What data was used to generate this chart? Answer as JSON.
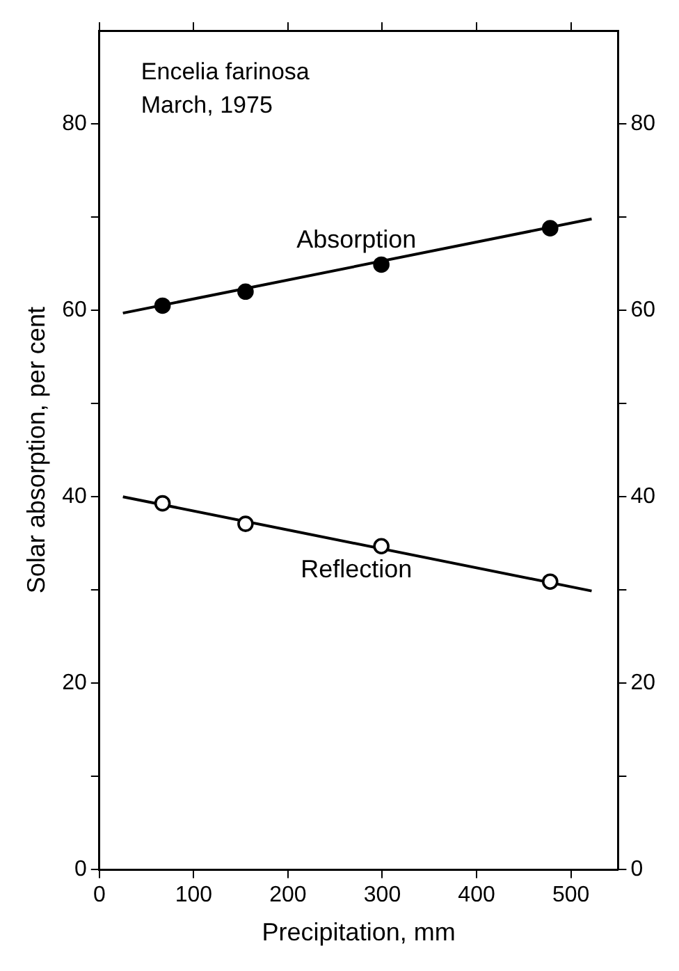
{
  "chart_data": {
    "type": "scatter",
    "xlabel": "Precipitation, mm",
    "ylabel": "Solar absorption, per cent",
    "annotations": [
      "Encelia farinosa",
      "March, 1975"
    ],
    "series": [
      {
        "name": "Absorption",
        "color": "#000000",
        "marker": "circle",
        "x": [
          67,
          155,
          299,
          478
        ],
        "values": [
          60.5,
          62.0,
          64.9,
          68.8
        ]
      },
      {
        "name": "Reflection",
        "color": "#ffffff",
        "marker": "circle",
        "x": [
          67,
          155,
          299,
          478
        ],
        "values": [
          39.3,
          37.1,
          34.7,
          30.9
        ]
      },
      {
        "type": "line",
        "color": "#000000",
        "x": [
          25,
          522
        ],
        "values": [
          59.7,
          69.8
        ]
      },
      {
        "type": "line",
        "color": "#000000",
        "x": [
          25,
          522
        ],
        "values": [
          40.0,
          29.9
        ]
      }
    ],
    "xlim": [
      0,
      550
    ],
    "xticks": [
      0,
      100,
      200,
      300,
      400,
      500
    ],
    "ylim": [
      0,
      90
    ],
    "yticks": [
      0,
      {
        "value": 10,
        "label": null
      },
      20,
      {
        "value": 30,
        "label": null
      },
      40,
      {
        "value": 50,
        "label": null
      },
      60,
      {
        "value": 70,
        "label": null
      },
      80
    ],
    "y2lim": [
      0,
      90
    ],
    "y2ticks": [
      0,
      {
        "value": 10,
        "label": null
      },
      20,
      {
        "value": 30,
        "label": null
      },
      40,
      {
        "value": 50,
        "label": null
      },
      60,
      {
        "value": 70,
        "label": null
      },
      80
    ],
    "grid": false,
    "legend": false
  }
}
